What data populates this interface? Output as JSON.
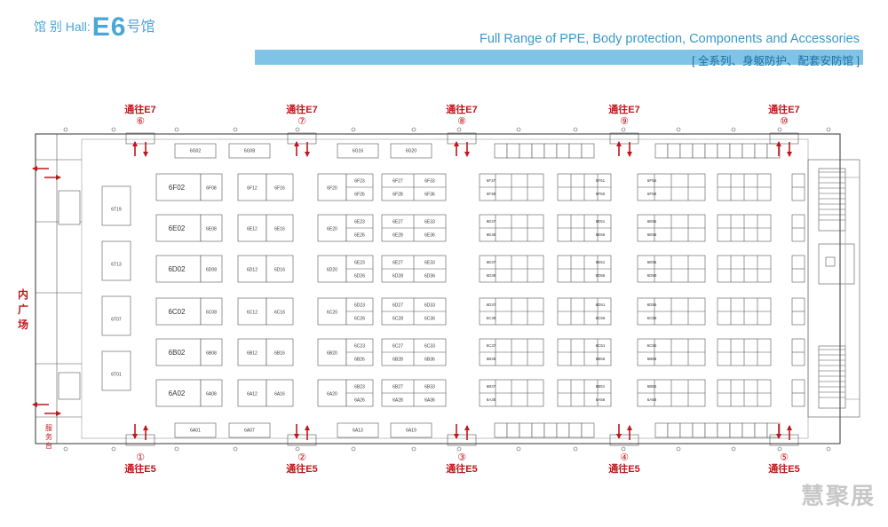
{
  "header": {
    "hall_label": "馆 别 Hall:",
    "hall_code": "E6",
    "hall_suffix": "号馆",
    "subtitle_en": "Full Range of PPE, Body protection, Components and Accessories",
    "subtitle_cn": "[ 全系列、身躯防护、配套安防馆 ]"
  },
  "entrances_top": [
    {
      "label": "通往E7",
      "num": "⑥"
    },
    {
      "label": "通往E7",
      "num": "⑦"
    },
    {
      "label": "通往E7",
      "num": "⑧"
    },
    {
      "label": "通往E7",
      "num": "⑨"
    },
    {
      "label": "通往E7",
      "num": "⑩"
    }
  ],
  "entrances_bottom": [
    {
      "label": "通往E5",
      "num": "①"
    },
    {
      "label": "通往E5",
      "num": "②"
    },
    {
      "label": "通往E5",
      "num": "③"
    },
    {
      "label": "通往E5",
      "num": "④"
    },
    {
      "label": "通往E5",
      "num": "⑤"
    }
  ],
  "side_label": "内广场",
  "service_desk": "服务台",
  "watermark": "慧聚展",
  "top_booths": [
    "6G02",
    "6G08",
    "6G16",
    "6G20"
  ],
  "bottom_booths": [
    "6A01",
    "6A07",
    "6A13",
    "6A19"
  ],
  "left_booths": [
    "6T19",
    "6T13",
    "6T07",
    "6T01"
  ],
  "rows": [
    {
      "letter": "F",
      "big": "6F02",
      "b1": "6F08",
      "b2": "6F12",
      "b3": "6F16",
      "b4": "6F20",
      "s1": [
        "6F23",
        "6F26"
      ],
      "s2": [
        "6F27",
        "6F28"
      ],
      "s3": [
        "6F33",
        "6F36"
      ],
      "s4": [
        "6F37",
        "6F38"
      ],
      "s5": [
        "6F51",
        "6F56"
      ],
      "s6": [
        "6F55",
        "6F58"
      ]
    },
    {
      "letter": "E",
      "big": "6E02",
      "b1": "6E08",
      "b2": "6E12",
      "b3": "6E16",
      "b4": "6E20",
      "s1": [
        "6E23",
        "6E26"
      ],
      "s2": [
        "6E27",
        "6E28"
      ],
      "s3": [
        "6E33",
        "6E36"
      ],
      "s4": [
        "6E37",
        "6E38"
      ],
      "s5": [
        "6E51",
        "6E56"
      ],
      "s6": [
        "6E55",
        "6E58"
      ]
    },
    {
      "letter": "D",
      "big": "6D02",
      "b1": "6D08",
      "b2": "6D12",
      "b3": "6D16",
      "b4": "6D20",
      "s1": [
        "6E23",
        "6D26"
      ],
      "s2": [
        "6E27",
        "6D28"
      ],
      "s3": [
        "6E33",
        "6D36"
      ],
      "s4": [
        "6E37",
        "6D38"
      ],
      "s5": [
        "6E51",
        "6D56"
      ],
      "s6": [
        "6E55",
        "6D58"
      ]
    },
    {
      "letter": "C",
      "big": "6C02",
      "b1": "6C08",
      "b2": "6C12",
      "b3": "6C16",
      "b4": "6C20",
      "s1": [
        "6D23",
        "6C26"
      ],
      "s2": [
        "6D27",
        "6C28"
      ],
      "s3": [
        "6D33",
        "6C36"
      ],
      "s4": [
        "6D37",
        "6C38"
      ],
      "s5": [
        "6D51",
        "6C56"
      ],
      "s6": [
        "6D55",
        "6C58"
      ]
    },
    {
      "letter": "B",
      "big": "6B02",
      "b1": "6B08",
      "b2": "6B12",
      "b3": "6B16",
      "b4": "6B20",
      "s1": [
        "6C23",
        "6B26"
      ],
      "s2": [
        "6C27",
        "6B28"
      ],
      "s3": [
        "6C33",
        "6B36"
      ],
      "s4": [
        "6C37",
        "6B38"
      ],
      "s5": [
        "6C51",
        "6B56"
      ],
      "s6": [
        "6C55",
        "6B58"
      ]
    },
    {
      "letter": "A",
      "big": "6A02",
      "b1": "6A08",
      "b2": "6A12",
      "b3": "6A16",
      "b4": "6A20",
      "s1": [
        "6B23",
        "6A26"
      ],
      "s2": [
        "6B27",
        "6A28"
      ],
      "s3": [
        "6B33",
        "6A36"
      ],
      "s4": [
        "6B37",
        "6A38"
      ],
      "s5": [
        "6B51",
        "6A56"
      ],
      "s6": [
        "6B55",
        "6A58"
      ]
    }
  ],
  "colors": {
    "accent": "#4aa7d6",
    "bar": "#7fc3e6",
    "red": "#c0161c",
    "line": "#555555"
  }
}
